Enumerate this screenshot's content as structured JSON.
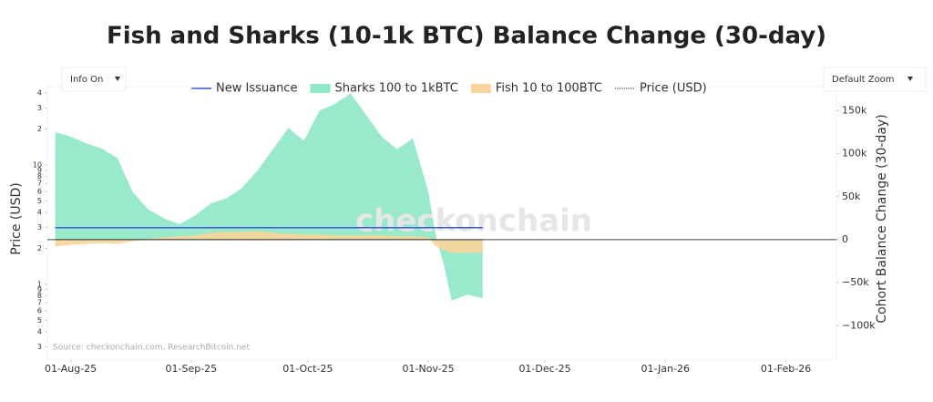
{
  "chart_data": {
    "type": "area",
    "title": "Fish and Sharks (10-1k BTC) Balance Change (30-day)",
    "ylabel": "Price (USD)",
    "y2label": "Cohort Balance Change (30-day)",
    "watermark": "checkonchain",
    "source": "Source: checkonchain.com, ResearchBitcoin.net",
    "controls": [
      "Info On",
      "Default Zoom"
    ],
    "xlim": [
      "2025-07-26",
      "2026-02-14"
    ],
    "xticks": [
      {
        "value": "2025-08-01",
        "label": "01-Aug-25"
      },
      {
        "value": "2025-09-01",
        "label": "01-Sep-25"
      },
      {
        "value": "2025-10-01",
        "label": "01-Oct-25"
      },
      {
        "value": "2025-11-01",
        "label": "01-Nov-25"
      },
      {
        "value": "2025-12-01",
        "label": "01-Dec-25"
      },
      {
        "value": "2026-01-01",
        "label": "01-Jan-26"
      },
      {
        "value": "2026-02-01",
        "label": "01-Feb-26"
      }
    ],
    "ylog": true,
    "ylim": [
      0.232,
      45.3
    ],
    "yticks": [
      {
        "value": 40,
        "label": "4"
      },
      {
        "value": 30,
        "label": "3"
      },
      {
        "value": 20,
        "label": "2"
      },
      10,
      {
        "value": 9,
        "label": "9"
      },
      {
        "value": 8,
        "label": "8"
      },
      {
        "value": 7,
        "label": "7"
      },
      {
        "value": 6,
        "label": "6"
      },
      {
        "value": 5,
        "label": "5"
      },
      {
        "value": 4,
        "label": "4"
      },
      {
        "value": 3,
        "label": "3"
      },
      {
        "value": 2,
        "label": "2"
      },
      1,
      {
        "value": 0.9,
        "label": "9"
      },
      {
        "value": 0.8,
        "label": "8"
      },
      {
        "value": 0.7,
        "label": "7"
      },
      {
        "value": 0.6,
        "label": "6"
      },
      {
        "value": 0.5,
        "label": "5"
      },
      {
        "value": 0.4,
        "label": "4"
      },
      {
        "value": 0.3,
        "label": "3"
      }
    ],
    "y2lim": [
      -140000,
      178000
    ],
    "y2ticks": [
      {
        "value": 150000,
        "label": "150k"
      },
      {
        "value": 100000,
        "label": "100k"
      },
      {
        "value": 50000,
        "label": "50k"
      },
      0,
      {
        "value": -50000,
        "label": "−50k"
      },
      {
        "value": -100000,
        "label": "−100k"
      }
    ],
    "x": [
      "2025-07-28",
      "2025-08-01",
      "2025-08-05",
      "2025-08-09",
      "2025-08-13",
      "2025-08-17",
      "2025-08-21",
      "2025-08-25",
      "2025-08-29",
      "2025-09-02",
      "2025-09-06",
      "2025-09-10",
      "2025-09-14",
      "2025-09-18",
      "2025-09-22",
      "2025-09-26",
      "2025-09-30",
      "2025-10-04",
      "2025-10-08",
      "2025-10-12",
      "2025-10-16",
      "2025-10-20",
      "2025-10-24",
      "2025-10-28",
      "2025-11-01",
      "2025-11-03",
      "2025-11-05",
      "2025-11-07",
      "2025-11-11",
      "2025-11-15"
    ],
    "series": [
      {
        "name": "New Issuance",
        "color": "#3b5bdb",
        "kind": "line",
        "axis": "y2",
        "values": [
          14000,
          14000,
          14000,
          14000,
          14000,
          14000,
          14000,
          14000,
          14000,
          14000,
          14000,
          14000,
          14000,
          14000,
          14000,
          14000,
          14000,
          14000,
          14000,
          14000,
          14000,
          14000,
          14000,
          14000,
          14000,
          14000,
          14000,
          14000,
          14000,
          14000
        ]
      },
      {
        "name": "Sharks 100 to 1kBTC",
        "color": "#8ee8c4",
        "kind": "area",
        "axis": "y2",
        "values": [
          125000,
          120000,
          112000,
          106000,
          95000,
          55000,
          35000,
          25000,
          18000,
          28000,
          42000,
          48000,
          60000,
          80000,
          105000,
          130000,
          115000,
          150000,
          158000,
          170000,
          145000,
          120000,
          105000,
          118000,
          56000,
          3000,
          -29000,
          -71000,
          -64000,
          -68000
        ]
      },
      {
        "name": "Fish 10 to 100BTC",
        "color": "#f8d59a",
        "kind": "area",
        "axis": "y2",
        "values": [
          -8000,
          -6000,
          -5000,
          -4000,
          -5000,
          -2000,
          1000,
          3000,
          4000,
          5000,
          8000,
          9000,
          9000,
          10000,
          8000,
          7000,
          6000,
          6000,
          5000,
          5000,
          5000,
          5000,
          4000,
          4000,
          3000,
          -8000,
          -12000,
          -15000,
          -15000,
          -15000
        ]
      },
      {
        "name": "Price (USD)",
        "color": "#222222",
        "kind": "dotted",
        "axis": "y",
        "values": [
          2.37,
          2.37,
          2.37,
          2.37,
          2.37,
          2.37,
          2.37,
          2.37,
          2.37,
          2.37,
          2.37,
          2.37,
          2.37,
          2.37,
          2.37,
          2.37,
          2.37,
          2.37,
          2.37,
          2.37,
          2.37,
          2.37,
          2.37,
          2.37,
          2.37,
          2.37,
          2.37,
          2.37,
          2.37,
          2.37
        ]
      }
    ]
  }
}
